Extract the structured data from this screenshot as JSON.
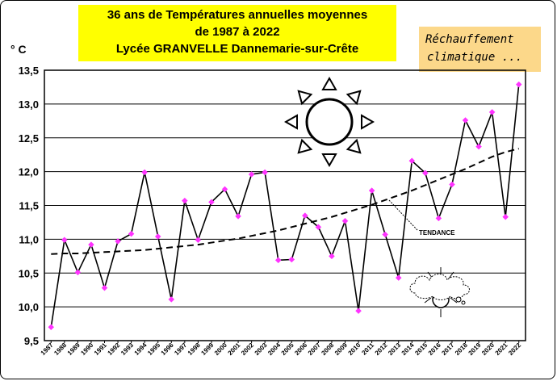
{
  "title": {
    "line1": "36 ans de Températures annuelles moyennes",
    "line2": "de 1987  à 2022",
    "line3": "Lycée GRANVELLE Dannemarie-sur-Crête"
  },
  "note": {
    "line1": "Réchauffement",
    "line2": "climatique ..."
  },
  "unit_label": "° C",
  "trend_label": "TENDANCE",
  "icons": [
    "sun-icon",
    "cloud-sun-icon"
  ],
  "colors": {
    "marker": "#ff33ff",
    "line": "#000000",
    "title_bg": "#ffff00",
    "note_bg": "#fcd88a"
  },
  "chart_data": {
    "type": "line",
    "ylabel": "° C",
    "ylim": [
      9.5,
      13.5
    ],
    "yticks": [
      "9,5",
      "10,0",
      "10,5",
      "11,0",
      "11,5",
      "12,0",
      "12,5",
      "13,0",
      "13,5"
    ],
    "grid": "horizontal",
    "categories": [
      "1987",
      "1988",
      "1989",
      "1990",
      "1991",
      "1992",
      "1993",
      "1994",
      "1995",
      "1996",
      "1997",
      "1998",
      "1999",
      "2000",
      "2001",
      "2002",
      "2003",
      "2004",
      "2005",
      "2006",
      "2007",
      "2008",
      "2009",
      "2010",
      "2011",
      "2012",
      "2013",
      "2014",
      "2015",
      "2016",
      "2017",
      "2018",
      "2019",
      "2020",
      "2021",
      "2022"
    ],
    "series": [
      {
        "values": [
          9.7,
          10.99,
          10.51,
          10.92,
          10.28,
          10.97,
          11.08,
          11.99,
          11.04,
          10.11,
          11.57,
          10.99,
          11.55,
          11.74,
          11.34,
          11.96,
          11.99,
          10.69,
          10.7,
          11.35,
          11.18,
          10.75,
          11.27,
          9.94,
          11.72,
          11.07,
          10.43,
          12.16,
          11.98,
          11.31,
          11.81,
          12.76,
          12.37,
          12.88,
          11.33,
          13.29
        ]
      },
      {
        "name": "TENDANCE",
        "style": "dashed",
        "values": [
          10.78,
          10.79,
          10.79,
          10.8,
          10.81,
          10.82,
          10.83,
          10.84,
          10.86,
          10.88,
          10.9,
          10.92,
          10.95,
          10.98,
          11.01,
          11.05,
          11.09,
          11.13,
          11.18,
          11.23,
          11.28,
          11.33,
          11.39,
          11.45,
          11.51,
          11.58,
          11.65,
          11.72,
          11.8,
          11.88,
          11.96,
          12.04,
          12.13,
          12.22,
          12.29,
          12.34
        ]
      }
    ]
  }
}
